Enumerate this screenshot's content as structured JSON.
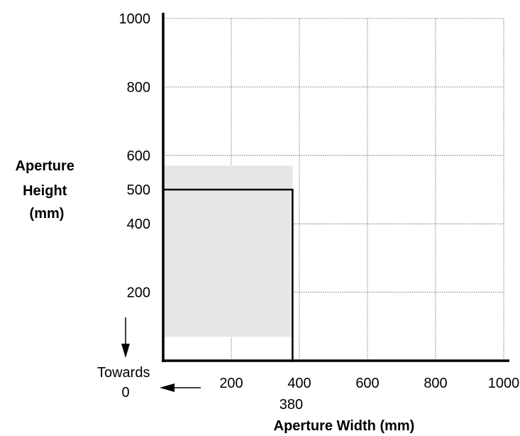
{
  "chart_data": {
    "type": "area",
    "title": "",
    "xlabel": "Aperture Width (mm)",
    "ylabel_lines": [
      "Aperture",
      "Height",
      "(mm)"
    ],
    "xlim": [
      0,
      1000
    ],
    "ylim": [
      0,
      1000
    ],
    "x_ticks": [
      200,
      400,
      600,
      800,
      1000
    ],
    "y_ticks": [
      200,
      400,
      500,
      600,
      800,
      1000
    ],
    "x_gridlines": [
      200,
      400,
      600,
      800,
      1000
    ],
    "y_gridlines": [
      200,
      400,
      600,
      800,
      1000
    ],
    "grid": true,
    "shaded_region": {
      "x": [
        0,
        380
      ],
      "y": [
        70,
        570
      ],
      "color": "#e6e6e6"
    },
    "limit_lines": {
      "width": 380,
      "height": 500,
      "color": "#000000"
    },
    "annotations": {
      "width_marker": "380",
      "towards_lines": [
        "Towards",
        "0"
      ]
    }
  }
}
